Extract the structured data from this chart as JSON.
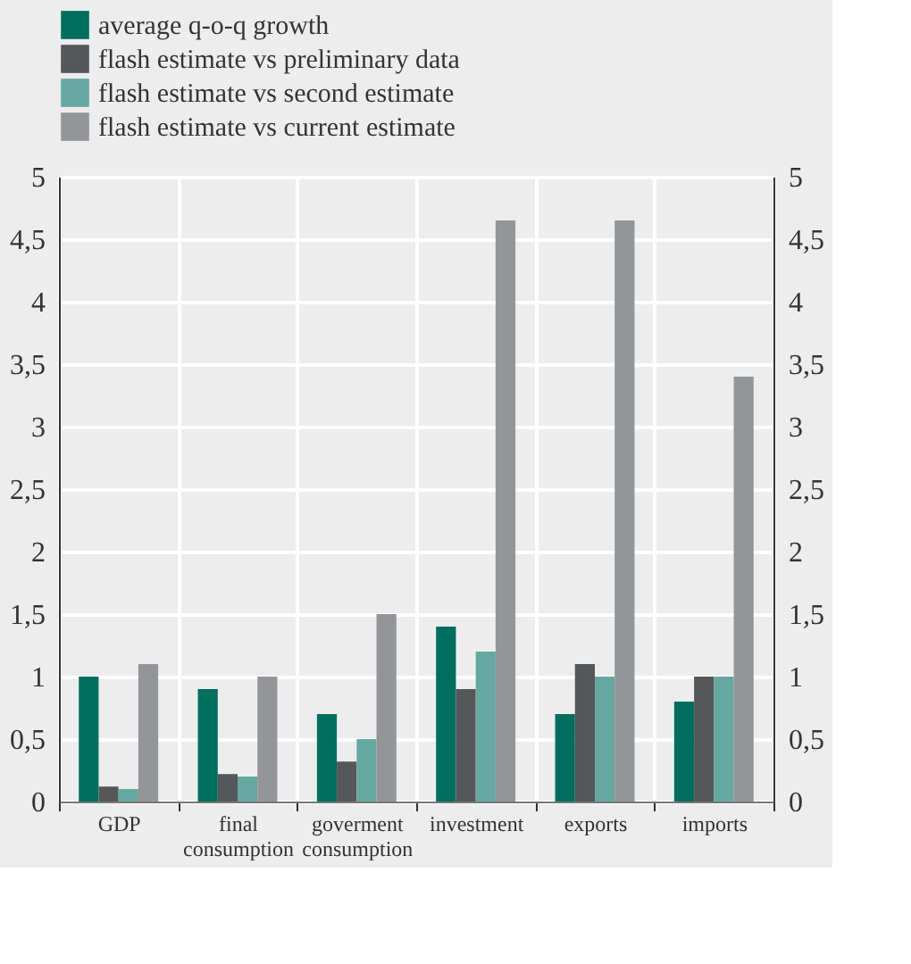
{
  "chart_data": {
    "type": "bar",
    "categories": [
      "GDP",
      "final consumption",
      "goverment consumption",
      "investment",
      "exports",
      "imports"
    ],
    "series": [
      {
        "name": "average q-o-q growth",
        "color": "#006e5f",
        "values": [
          1.0,
          0.9,
          0.7,
          1.4,
          0.7,
          0.8
        ]
      },
      {
        "name": "flash estimate vs preliminary data",
        "color": "#555759",
        "values": [
          0.12,
          0.22,
          0.32,
          0.9,
          1.1,
          1.0
        ]
      },
      {
        "name": "flash estimate vs second estimate",
        "color": "#66a8a0",
        "values": [
          0.1,
          0.2,
          0.5,
          1.2,
          1.0,
          1.0
        ]
      },
      {
        "name": "flash estimate vs current estimate",
        "color": "#939598",
        "values": [
          1.1,
          1.0,
          1.5,
          4.65,
          4.65,
          3.4
        ]
      }
    ],
    "ylim": [
      0,
      5
    ],
    "yticks": [
      0,
      {
        "value": 0.5,
        "label": "0,5"
      },
      1,
      {
        "value": 1.5,
        "label": "1,5"
      },
      2,
      {
        "value": 2.5,
        "label": "2,5"
      },
      3,
      {
        "value": 3.5,
        "label": "3,5"
      },
      4,
      {
        "value": 4.5,
        "label": "4,5"
      },
      5
    ],
    "y2lim": [
      0,
      5
    ],
    "y2ticks": [
      0,
      {
        "value": 0.5,
        "label": "0,5"
      },
      1,
      {
        "value": 1.5,
        "label": "1,5"
      },
      2,
      {
        "value": 2.5,
        "label": "2,5"
      },
      3,
      {
        "value": 3.5,
        "label": "3,5"
      },
      4,
      {
        "value": 4.5,
        "label": "4,5"
      },
      5
    ],
    "grid": true,
    "legend": "top left"
  }
}
